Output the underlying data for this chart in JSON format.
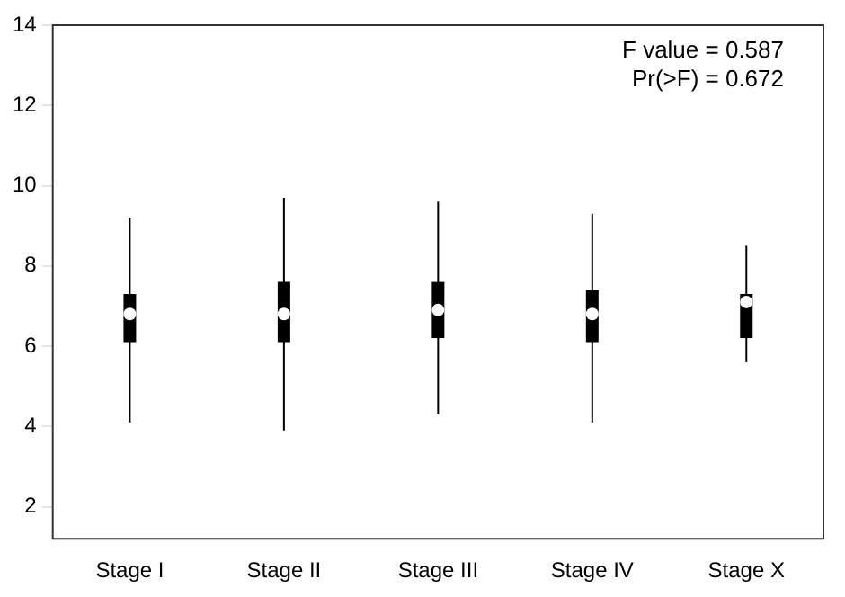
{
  "chart_data": {
    "type": "box",
    "categories": [
      "Stage I",
      "Stage II",
      "Stage III",
      "Stage IV",
      "Stage X"
    ],
    "boxes": [
      {
        "low": 4.1,
        "q1": 6.1,
        "median": 6.8,
        "q3": 7.3,
        "high": 9.2
      },
      {
        "low": 3.9,
        "q1": 6.1,
        "median": 6.8,
        "q3": 7.6,
        "high": 9.7
      },
      {
        "low": 4.3,
        "q1": 6.2,
        "median": 6.9,
        "q3": 7.6,
        "high": 9.6
      },
      {
        "low": 4.1,
        "q1": 6.1,
        "median": 6.8,
        "q3": 7.4,
        "high": 9.3
      },
      {
        "low": 5.6,
        "q1": 6.2,
        "median": 7.1,
        "q3": 7.3,
        "high": 8.5
      }
    ],
    "color": "#000000",
    "ylim": [
      1.2,
      14
    ],
    "yticks": [
      2,
      4,
      6,
      8,
      10,
      12,
      14
    ],
    "annotations": [
      "F value = 0.587",
      "Pr(>F) = 0.672"
    ],
    "grid": false,
    "legend": false
  }
}
